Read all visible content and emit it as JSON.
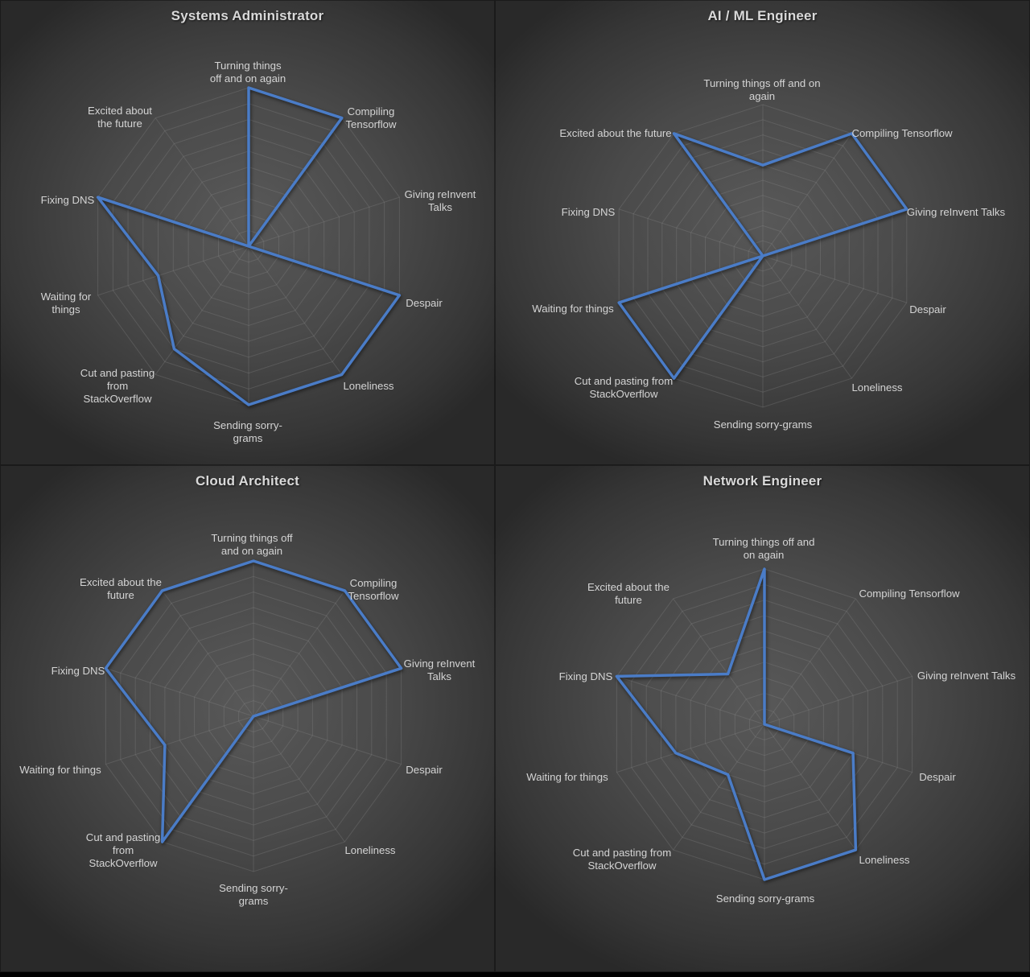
{
  "page": {
    "background_color": "#000000",
    "panel_center_color": "#585858",
    "panel_edge_color": "#292929",
    "line_color": "#4a7cc7",
    "grid_color": "#8f8f8f",
    "text_color": "#d9d9d9"
  },
  "chart_data": [
    {
      "type": "radar",
      "title": "Systems Administrator",
      "categories": [
        "Turning things off and on again",
        "Compiling Tensorflow",
        "Giving reInvent Talks",
        "Despair",
        "Loneliness",
        "Sending sorry-grams",
        "Cut and pasting from StackOverflow",
        "Waiting for things",
        "Fixing DNS",
        "Excited about the future"
      ],
      "values": [
        10,
        10,
        0,
        10,
        10,
        10,
        8,
        6,
        10,
        0
      ],
      "label_lines": [
        [
          "Turning things",
          "off and on again"
        ],
        [
          "Compiling",
          "Tensorflow"
        ],
        [
          "Giving reInvent",
          "Talks"
        ],
        [
          "Despair"
        ],
        [
          "Loneliness"
        ],
        [
          "Sending sorry-",
          "grams"
        ],
        [
          "Cut and pasting",
          "from",
          "StackOverflow"
        ],
        [
          "Waiting for",
          "things"
        ],
        [
          "Fixing DNS"
        ],
        [
          "Excited about",
          "the future"
        ]
      ],
      "ylim": [
        0,
        10
      ],
      "rings": 10,
      "grid": true,
      "legend": false,
      "line_color": "#4a7cc7"
    },
    {
      "type": "radar",
      "title": "AI / ML Engineer",
      "categories": [
        "Turning things off and on again",
        "Compiling Tensorflow",
        "Giving reInvent Talks",
        "Despair",
        "Loneliness",
        "Sending sorry-grams",
        "Cut and pasting from StackOverflow",
        "Waiting for things",
        "Fixing DNS",
        "Excited about the future"
      ],
      "values": [
        6,
        10,
        10,
        0,
        0,
        0,
        10,
        10,
        0,
        10
      ],
      "label_lines": [
        [
          "Turning things off and on",
          "again"
        ],
        [
          "Compiling Tensorflow"
        ],
        [
          "Giving reInvent Talks"
        ],
        [
          "Despair"
        ],
        [
          "Loneliness"
        ],
        [
          "Sending sorry-grams"
        ],
        [
          "Cut and pasting from",
          "StackOverflow"
        ],
        [
          "Waiting for things"
        ],
        [
          "Fixing DNS"
        ],
        [
          "Excited about the future"
        ]
      ],
      "ylim": [
        0,
        10
      ],
      "rings": 10,
      "grid": true,
      "legend": false,
      "line_color": "#4a7cc7"
    },
    {
      "type": "radar",
      "title": "Cloud Architect",
      "categories": [
        "Turning things off and on again",
        "Compiling Tensorflow",
        "Giving reInvent Talks",
        "Despair",
        "Loneliness",
        "Sending sorry-grams",
        "Cut and pasting from StackOverflow",
        "Waiting for things",
        "Fixing DNS",
        "Excited about the future"
      ],
      "values": [
        10,
        10,
        10,
        0,
        0,
        0,
        10,
        6,
        10,
        10
      ],
      "label_lines": [
        [
          "Turning things off",
          "and on again"
        ],
        [
          "Compiling",
          "Tensorflow"
        ],
        [
          "Giving reInvent",
          "Talks"
        ],
        [
          "Despair"
        ],
        [
          "Loneliness"
        ],
        [
          "Sending sorry-",
          "grams"
        ],
        [
          "Cut and pasting",
          "from",
          "StackOverflow"
        ],
        [
          "Waiting for things"
        ],
        [
          "Fixing DNS"
        ],
        [
          "Excited about the",
          "future"
        ]
      ],
      "ylim": [
        0,
        10
      ],
      "rings": 10,
      "grid": true,
      "legend": false,
      "line_color": "#4a7cc7"
    },
    {
      "type": "radar",
      "title": "Network Engineer",
      "categories": [
        "Turning things off and on again",
        "Compiling Tensorflow",
        "Giving reInvent Talks",
        "Despair",
        "Loneliness",
        "Sending sorry-grams",
        "Cut and pasting from StackOverflow",
        "Waiting for things",
        "Fixing DNS",
        "Excited about the future"
      ],
      "values": [
        10,
        0,
        0,
        6,
        10,
        10,
        4,
        6,
        10,
        4
      ],
      "label_lines": [
        [
          "Turning things off and",
          "on again"
        ],
        [
          "Compiling Tensorflow"
        ],
        [
          "Giving reInvent Talks"
        ],
        [
          "Despair"
        ],
        [
          "Loneliness"
        ],
        [
          "Sending sorry-grams"
        ],
        [
          "Cut and pasting from",
          "StackOverflow"
        ],
        [
          "Waiting for things"
        ],
        [
          "Fixing DNS"
        ],
        [
          "Excited about the",
          "future"
        ]
      ],
      "ylim": [
        0,
        10
      ],
      "rings": 10,
      "grid": true,
      "legend": false,
      "line_color": "#4a7cc7"
    }
  ]
}
